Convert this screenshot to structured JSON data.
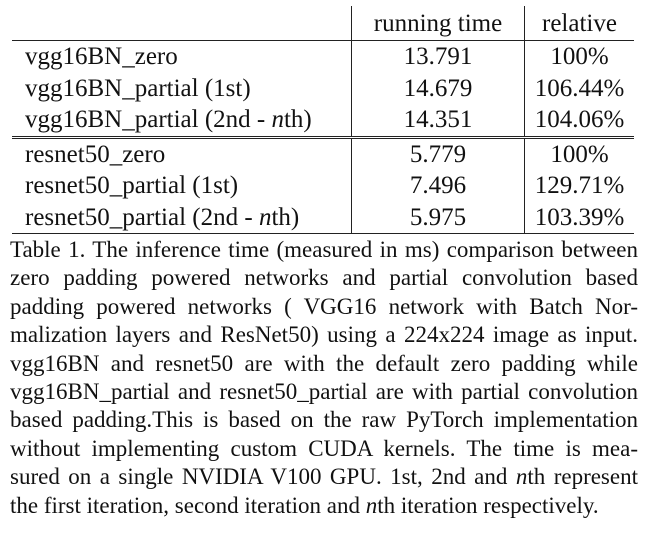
{
  "table": {
    "header": {
      "col1": "running time",
      "col2": "relative"
    },
    "rows": [
      {
        "name": "vgg16BN_zero",
        "time": "13.791",
        "relative": "100%"
      },
      {
        "name": "vgg16BN_partial (1st)",
        "time": "14.679",
        "relative": "106.44%"
      },
      {
        "name_prefix": "vgg16BN_partial (2nd - ",
        "name_var": "n",
        "name_suffix": "th)",
        "time": "14.351",
        "relative": "104.06%"
      },
      {
        "name": "resnet50_zero",
        "time": "5.779",
        "relative": "100%"
      },
      {
        "name": "resnet50_partial (1st)",
        "time": "7.496",
        "relative": "129.71%"
      },
      {
        "name_prefix": "resnet50_partial (2nd - ",
        "name_var": "n",
        "name_suffix": "th)",
        "time": "5.975",
        "relative": "103.39%"
      }
    ]
  },
  "caption": {
    "lines": [
      "Table 1. The inference time (measured in ms) comparison between",
      "zero padding powered networks and partial convolution based",
      "padding powered networks ( VGG16 network with Batch Nor-",
      "malization layers and ResNet50) using a 224x224 image as input.",
      "vgg16BN and resnet50 are with the default zero padding while",
      "vgg16BN_partial and resnet50_partial are with partial convolution",
      "based padding.This is based on the raw PyTorch implementation",
      "without implementing custom CUDA kernels.  The time is mea-",
      "sured on a single NVIDIA V100 GPU. 1st, 2nd and ",
      "the first iteration, second iteration and "
    ],
    "line9_var": "n",
    "line9_suffix": "th represent",
    "line10_var": "n",
    "line10_suffix": "th iteration respectively."
  }
}
